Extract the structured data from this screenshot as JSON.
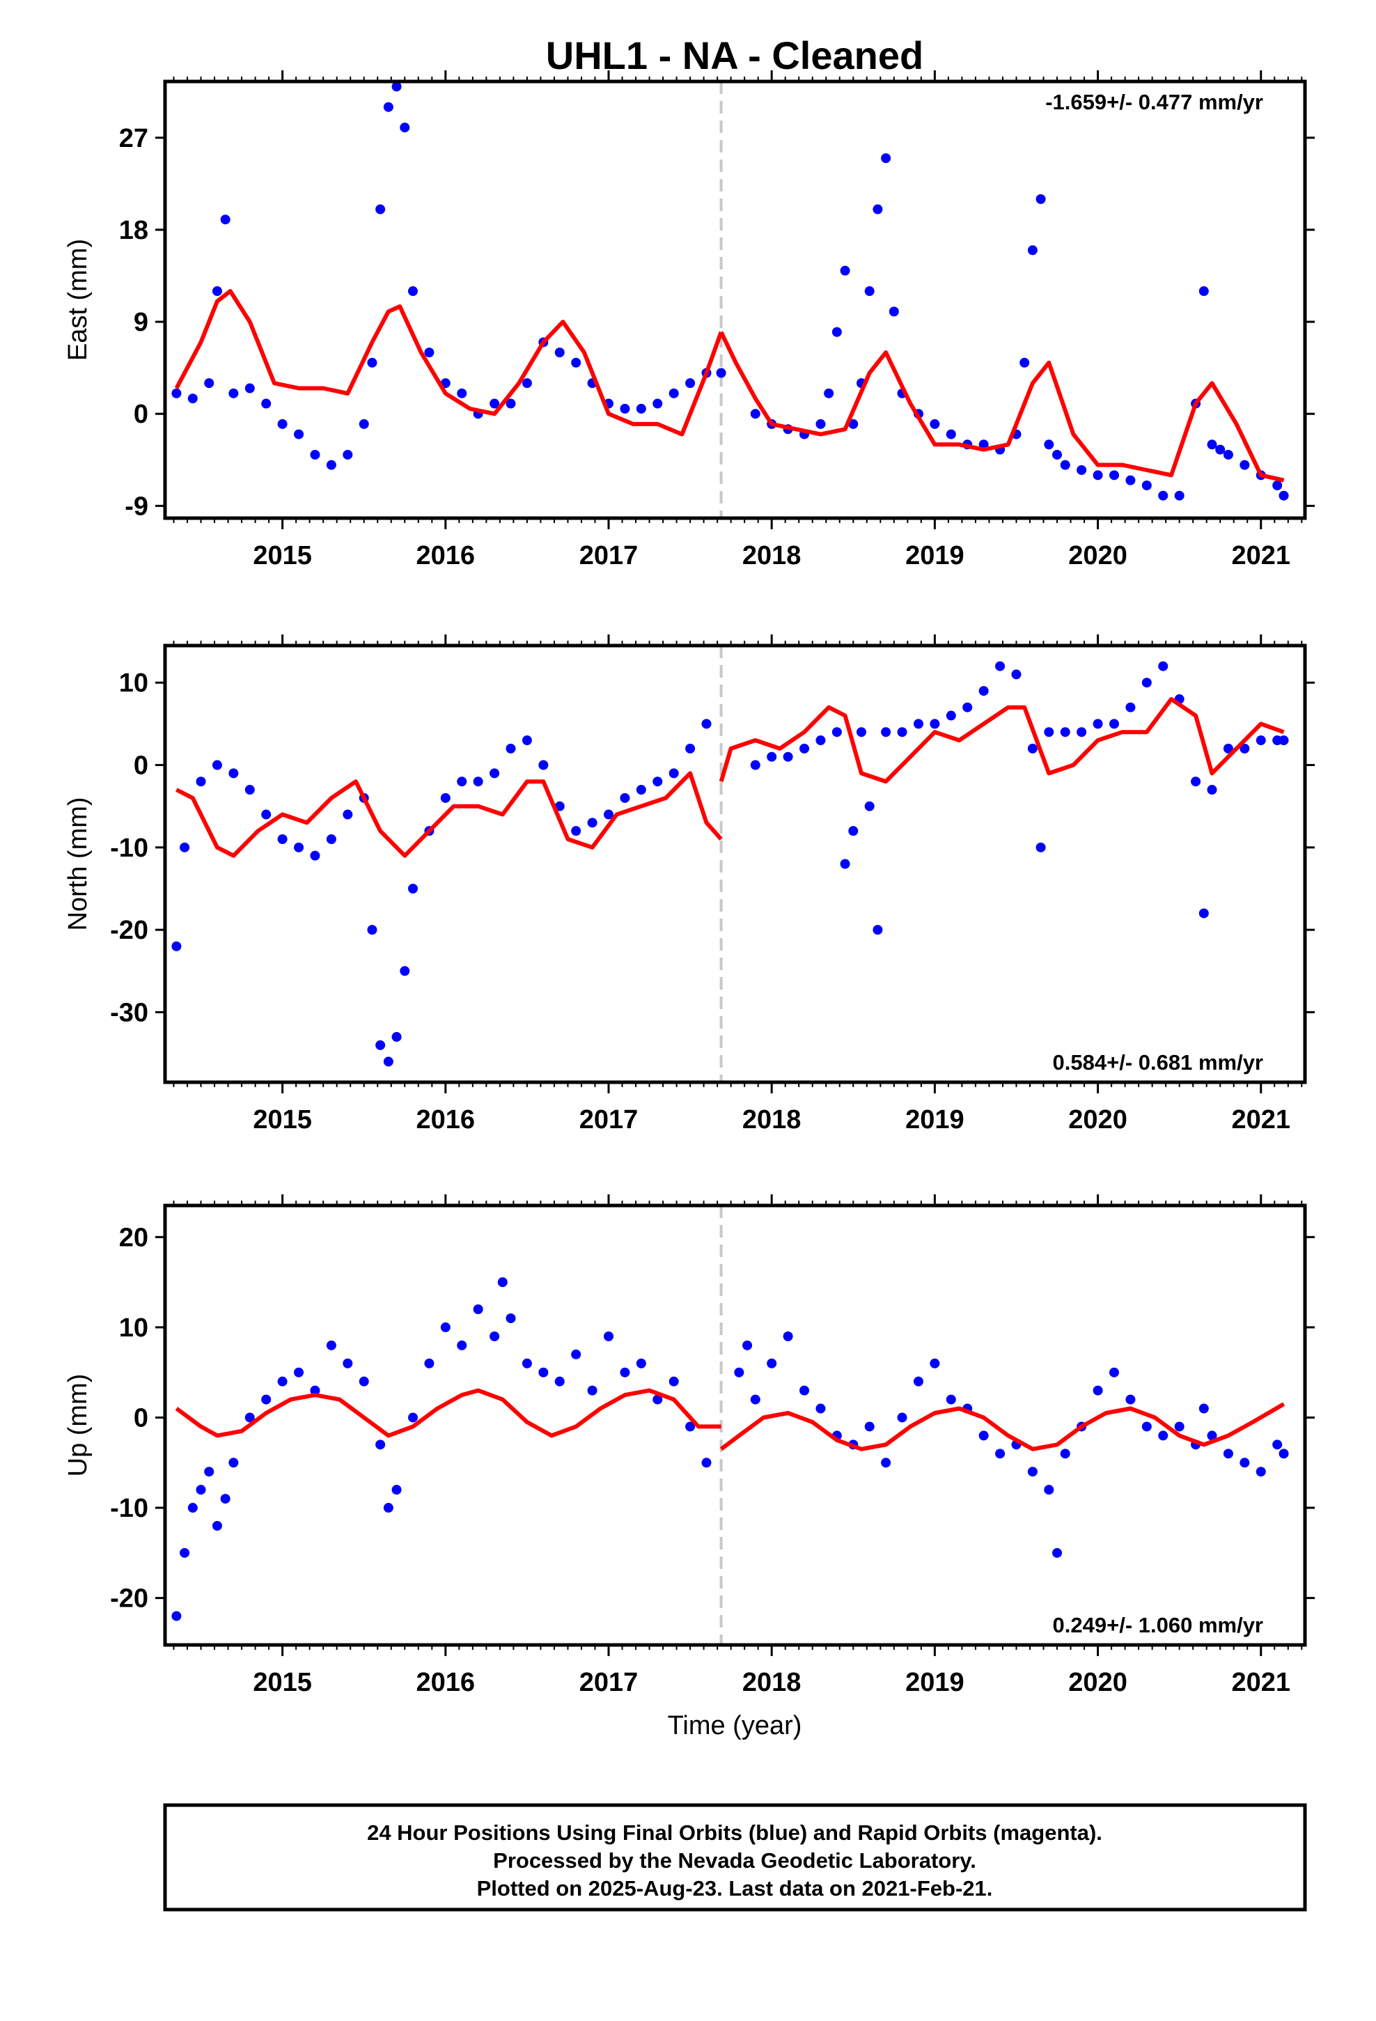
{
  "title": "UHL1  - NA - Cleaned",
  "x_axis_label": "Time (year)",
  "footer": {
    "line1": "24 Hour Positions Using Final Orbits (blue) and Rapid Orbits (magenta).",
    "line2": "Processed by the Nevada Geodetic Laboratory.",
    "line3": "Plotted on 2025-Aug-23. Last data on 2021-Feb-21."
  },
  "colors": {
    "data": "#0000ff",
    "model": "#ff0000",
    "equipment_change": "#c8c8c8",
    "frame": "#000000"
  },
  "chart_data": [
    {
      "type": "scatter",
      "name": "east",
      "ylabel": "East (mm)",
      "rate": "-1.659+/- 0.477 mm/yr",
      "rate_position": "top-right",
      "xlim": [
        2014.28,
        2021.27
      ],
      "ylim": [
        -10.2,
        32.5
      ],
      "yticks": [
        -9,
        0,
        9,
        18,
        27
      ],
      "xticks": [
        2015,
        2016,
        2017,
        2018,
        2019,
        2020,
        2021
      ],
      "equipment_change_x": 2017.69,
      "observations_x": [
        2014.35,
        2014.45,
        2014.55,
        2014.6,
        2014.65,
        2014.7,
        2014.8,
        2014.9,
        2015.0,
        2015.1,
        2015.2,
        2015.3,
        2015.4,
        2015.5,
        2015.55,
        2015.6,
        2015.65,
        2015.7,
        2015.75,
        2015.8,
        2015.9,
        2016.0,
        2016.1,
        2016.2,
        2016.3,
        2016.4,
        2016.5,
        2016.6,
        2016.7,
        2016.8,
        2016.9,
        2017.0,
        2017.1,
        2017.2,
        2017.3,
        2017.4,
        2017.5,
        2017.6,
        2017.69,
        2017.75,
        2017.9,
        2018.0,
        2018.1,
        2018.2,
        2018.3,
        2018.35,
        2018.4,
        2018.45,
        2018.5,
        2018.55,
        2018.6,
        2018.65,
        2018.7,
        2018.75,
        2018.8,
        2018.9,
        2019.0,
        2019.1,
        2019.2,
        2019.3,
        2019.4,
        2019.5,
        2019.55,
        2019.6,
        2019.65,
        2019.7,
        2019.75,
        2019.8,
        2019.9,
        2020.0,
        2020.1,
        2020.2,
        2020.3,
        2020.4,
        2020.5,
        2020.6,
        2020.65,
        2020.7,
        2020.75,
        2020.8,
        2020.9,
        2021.0,
        2021.1,
        2021.14
      ],
      "observations_y": [
        2,
        1.5,
        3,
        12,
        19,
        2,
        2.5,
        1,
        -1,
        -2,
        -4,
        -5,
        -4,
        -1,
        5,
        20,
        30,
        32,
        28,
        12,
        6,
        3,
        2,
        0,
        1,
        1,
        3,
        7,
        6,
        5,
        3,
        1,
        0.5,
        0.5,
        1,
        2,
        3,
        4,
        4,
        null,
        0,
        -1,
        -1.5,
        -2,
        -1,
        2,
        8,
        14,
        -1,
        3,
        12,
        20,
        25,
        10,
        2,
        0,
        -1,
        -2,
        -3,
        -3,
        -3.5,
        -2,
        5,
        16,
        21,
        -3,
        -4,
        -5,
        -5.5,
        -6,
        -6,
        -6.5,
        -7,
        -8,
        -8,
        1,
        12,
        -3,
        -3.5,
        -4,
        -5,
        -6,
        -7,
        -8
      ],
      "model_x": [
        2014.35,
        2014.5,
        2014.6,
        2014.68,
        2014.8,
        2014.95,
        2015.1,
        2015.25,
        2015.4,
        2015.55,
        2015.65,
        2015.72,
        2015.85,
        2016.0,
        2016.15,
        2016.3,
        2016.45,
        2016.6,
        2016.72,
        2016.85,
        2017.0,
        2017.15,
        2017.3,
        2017.45,
        2017.6,
        2017.69
      ],
      "model_y": [
        2.5,
        7,
        11,
        12,
        9,
        3,
        2.5,
        2.5,
        2,
        7,
        10,
        10.5,
        6,
        2,
        0.5,
        0,
        3,
        7,
        9,
        6,
        0,
        -1,
        -1,
        -2,
        4,
        8
      ],
      "model2_x": [
        2017.69,
        2017.78,
        2017.9,
        2018.0,
        2018.15,
        2018.3,
        2018.45,
        2018.6,
        2018.7,
        2018.85,
        2019.0,
        2019.15,
        2019.3,
        2019.45,
        2019.6,
        2019.7,
        2019.85,
        2020.0,
        2020.15,
        2020.3,
        2020.45,
        2020.6,
        2020.7,
        2020.85,
        2021.0,
        2021.14
      ],
      "model2_y": [
        8,
        5,
        1.5,
        -1,
        -1.5,
        -2,
        -1.5,
        4,
        6,
        1,
        -3,
        -3,
        -3.5,
        -3,
        3,
        5,
        -2,
        -5,
        -5,
        -5.5,
        -6,
        1,
        3,
        -1,
        -6,
        -6.5
      ]
    },
    {
      "type": "scatter",
      "name": "north",
      "ylabel": "North (mm)",
      "rate": "0.584+/- 0.681 mm/yr",
      "rate_position": "bottom-right",
      "xlim": [
        2014.28,
        2021.27
      ],
      "ylim": [
        -38.5,
        14.5
      ],
      "yticks": [
        -30,
        -20,
        -10,
        0,
        10
      ],
      "xticks": [
        2015,
        2016,
        2017,
        2018,
        2019,
        2020,
        2021
      ],
      "equipment_change_x": 2017.69,
      "observations_x": [
        2014.35,
        2014.4,
        2014.5,
        2014.6,
        2014.7,
        2014.8,
        2014.9,
        2015.0,
        2015.1,
        2015.2,
        2015.3,
        2015.4,
        2015.5,
        2015.55,
        2015.6,
        2015.65,
        2015.7,
        2015.75,
        2015.8,
        2015.9,
        2016.0,
        2016.1,
        2016.2,
        2016.3,
        2016.4,
        2016.5,
        2016.6,
        2016.7,
        2016.8,
        2016.9,
        2017.0,
        2017.1,
        2017.2,
        2017.3,
        2017.4,
        2017.5,
        2017.6,
        2017.69,
        2017.75,
        2017.9,
        2018.0,
        2018.1,
        2018.2,
        2018.3,
        2018.4,
        2018.45,
        2018.5,
        2018.55,
        2018.6,
        2018.65,
        2018.7,
        2018.8,
        2018.9,
        2019.0,
        2019.1,
        2019.2,
        2019.3,
        2019.4,
        2019.5,
        2019.6,
        2019.65,
        2019.7,
        2019.8,
        2019.9,
        2020.0,
        2020.1,
        2020.2,
        2020.3,
        2020.4,
        2020.5,
        2020.6,
        2020.65,
        2020.7,
        2020.8,
        2020.9,
        2021.0,
        2021.1,
        2021.14
      ],
      "observations_y": [
        -22,
        -10,
        -2,
        0,
        -1,
        -3,
        -6,
        -9,
        -10,
        -11,
        -9,
        -6,
        -4,
        -20,
        -34,
        -36,
        -33,
        -25,
        -15,
        -8,
        -4,
        -2,
        -2,
        -1,
        2,
        3,
        0,
        -5,
        -8,
        -7,
        -6,
        -4,
        -3,
        -2,
        -1,
        2,
        5,
        null,
        null,
        0,
        1,
        1,
        2,
        3,
        4,
        -12,
        -8,
        4,
        -5,
        -20,
        4,
        4,
        5,
        5,
        6,
        7,
        9,
        12,
        11,
        2,
        -10,
        4,
        4,
        4,
        5,
        5,
        7,
        10,
        12,
        8,
        -2,
        -18,
        -3,
        2,
        2,
        3,
        3,
        3
      ],
      "model_x": [
        2014.35,
        2014.45,
        2014.6,
        2014.7,
        2014.85,
        2015.0,
        2015.15,
        2015.3,
        2015.45,
        2015.6,
        2015.75,
        2015.9,
        2016.05,
        2016.2,
        2016.35,
        2016.5,
        2016.6,
        2016.75,
        2016.9,
        2017.05,
        2017.2,
        2017.35,
        2017.5,
        2017.6,
        2017.69
      ],
      "model_y": [
        -3,
        -4,
        -10,
        -11,
        -8,
        -6,
        -7,
        -4,
        -2,
        -8,
        -11,
        -8,
        -5,
        -5,
        -6,
        -2,
        -2,
        -9,
        -10,
        -6,
        -5,
        -4,
        -1,
        -7,
        -9
      ],
      "model2_x": [
        2017.69,
        2017.75,
        2017.9,
        2018.05,
        2018.2,
        2018.35,
        2018.45,
        2018.55,
        2018.7,
        2018.85,
        2019.0,
        2019.15,
        2019.3,
        2019.45,
        2019.55,
        2019.7,
        2019.85,
        2020.0,
        2020.15,
        2020.3,
        2020.45,
        2020.6,
        2020.7,
        2020.85,
        2021.0,
        2021.14
      ],
      "model2_y": [
        -2,
        2,
        3,
        2,
        4,
        7,
        6,
        -1,
        -2,
        1,
        4,
        3,
        5,
        7,
        7,
        -1,
        0,
        3,
        4,
        4,
        8,
        6,
        -1,
        2,
        5,
        4
      ]
    },
    {
      "type": "scatter",
      "name": "up",
      "ylabel": "Up (mm)",
      "rate": "0.249+/- 1.060 mm/yr",
      "rate_position": "bottom-right",
      "xlim": [
        2014.28,
        2021.27
      ],
      "ylim": [
        -25.2,
        23.5
      ],
      "yticks": [
        -20,
        -10,
        0,
        10,
        20
      ],
      "xticks": [
        2015,
        2016,
        2017,
        2018,
        2019,
        2020,
        2021
      ],
      "equipment_change_x": 2017.69,
      "observations_x": [
        2014.35,
        2014.4,
        2014.45,
        2014.5,
        2014.55,
        2014.6,
        2014.65,
        2014.7,
        2014.8,
        2014.9,
        2015.0,
        2015.1,
        2015.2,
        2015.3,
        2015.4,
        2015.5,
        2015.6,
        2015.65,
        2015.7,
        2015.8,
        2015.9,
        2016.0,
        2016.1,
        2016.2,
        2016.3,
        2016.35,
        2016.4,
        2016.5,
        2016.6,
        2016.7,
        2016.8,
        2016.9,
        2017.0,
        2017.1,
        2017.2,
        2017.3,
        2017.4,
        2017.5,
        2017.6,
        2017.69,
        2017.8,
        2017.85,
        2017.9,
        2018.0,
        2018.1,
        2018.2,
        2018.3,
        2018.4,
        2018.5,
        2018.6,
        2018.7,
        2018.8,
        2018.9,
        2019.0,
        2019.1,
        2019.2,
        2019.3,
        2019.4,
        2019.5,
        2019.6,
        2019.7,
        2019.75,
        2019.8,
        2019.9,
        2020.0,
        2020.1,
        2020.2,
        2020.3,
        2020.4,
        2020.5,
        2020.6,
        2020.65,
        2020.7,
        2020.8,
        2020.9,
        2021.0,
        2021.1,
        2021.14
      ],
      "observations_y": [
        -22,
        -15,
        -10,
        -8,
        -6,
        -12,
        -9,
        -5,
        0,
        2,
        4,
        5,
        3,
        8,
        6,
        4,
        -3,
        -10,
        -8,
        0,
        6,
        10,
        8,
        12,
        9,
        15,
        11,
        6,
        5,
        4,
        7,
        3,
        9,
        5,
        6,
        2,
        4,
        -1,
        -5,
        null,
        5,
        8,
        2,
        6,
        9,
        3,
        1,
        -2,
        -3,
        -1,
        -5,
        0,
        4,
        6,
        2,
        1,
        -2,
        -4,
        -3,
        -6,
        -8,
        -15,
        -4,
        -1,
        3,
        5,
        2,
        -1,
        -2,
        -1,
        -3,
        1,
        -2,
        -4,
        -5,
        -6,
        -3,
        -4
      ],
      "model_x": [
        2014.35,
        2014.5,
        2014.6,
        2014.75,
        2014.9,
        2015.05,
        2015.2,
        2015.35,
        2015.5,
        2015.65,
        2015.8,
        2015.95,
        2016.1,
        2016.2,
        2016.35,
        2016.5,
        2016.65,
        2016.8,
        2016.95,
        2017.1,
        2017.25,
        2017.4,
        2017.55,
        2017.69
      ],
      "model_y": [
        1,
        -1,
        -2,
        -1.5,
        0.5,
        2,
        2.5,
        2,
        0,
        -2,
        -1,
        1,
        2.5,
        3,
        2,
        -0.5,
        -2,
        -1,
        1,
        2.5,
        3,
        2,
        -1,
        -1
      ],
      "model2_x": [
        2017.69,
        2017.8,
        2017.95,
        2018.1,
        2018.25,
        2018.4,
        2018.55,
        2018.7,
        2018.85,
        2019.0,
        2019.15,
        2019.3,
        2019.45,
        2019.6,
        2019.75,
        2019.9,
        2020.05,
        2020.2,
        2020.35,
        2020.5,
        2020.65,
        2020.8,
        2020.95,
        2021.14
      ],
      "model2_y": [
        -3.5,
        -2,
        0,
        0.5,
        -0.5,
        -2.5,
        -3.5,
        -3,
        -1,
        0.5,
        1,
        0,
        -2,
        -3.5,
        -3,
        -1,
        0.5,
        1,
        0,
        -2,
        -3,
        -2,
        -0.5,
        1.5
      ]
    }
  ]
}
